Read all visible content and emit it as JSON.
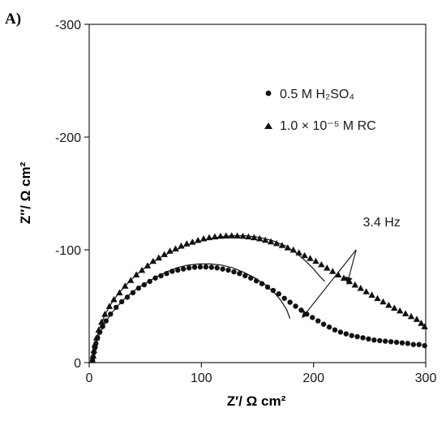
{
  "chart_data": {
    "type": "scatter",
    "panel_label": "A)",
    "xlabel": "Z′/ Ω cm²",
    "ylabel": "Z″/ Ω cm²",
    "xlim": [
      0,
      300
    ],
    "ylim": [
      0,
      -300
    ],
    "x_ticks": [
      0,
      100,
      200,
      300
    ],
    "y_ticks": [
      0,
      -100,
      -200,
      -300
    ],
    "x_tick_labels": [
      "0",
      "100",
      "200",
      "300"
    ],
    "y_tick_labels": [
      "0",
      "-100",
      "-200",
      "-300"
    ],
    "legend_position": "top-right",
    "series": [
      {
        "name": "0.5 M H₂SO₄",
        "marker": "circle",
        "color": "#111111",
        "points": [
          [
            3.0,
            -2
          ],
          [
            3.5,
            -5
          ],
          [
            4.2,
            -9
          ],
          [
            5.0,
            -13
          ],
          [
            6.0,
            -17
          ],
          [
            7.5,
            -22
          ],
          [
            9.5,
            -27
          ],
          [
            12,
            -32
          ],
          [
            15,
            -37
          ],
          [
            19,
            -43
          ],
          [
            24,
            -49
          ],
          [
            29,
            -54
          ],
          [
            34,
            -58
          ],
          [
            39,
            -62
          ],
          [
            44,
            -66
          ],
          [
            49,
            -69
          ],
          [
            54,
            -72
          ],
          [
            59,
            -75
          ],
          [
            64,
            -77
          ],
          [
            69,
            -79
          ],
          [
            74,
            -81
          ],
          [
            79,
            -82
          ],
          [
            84,
            -83
          ],
          [
            89,
            -84
          ],
          [
            94,
            -84.5
          ],
          [
            99,
            -84.8
          ],
          [
            104,
            -84.8
          ],
          [
            109,
            -84.5
          ],
          [
            114,
            -84
          ],
          [
            119,
            -83
          ],
          [
            124,
            -82
          ],
          [
            129,
            -80.5
          ],
          [
            134,
            -79
          ],
          [
            139,
            -77
          ],
          [
            144,
            -75
          ],
          [
            149,
            -72.5
          ],
          [
            154,
            -70
          ],
          [
            159,
            -67
          ],
          [
            164,
            -64
          ],
          [
            169,
            -61
          ],
          [
            174,
            -57
          ],
          [
            179,
            -53.5
          ],
          [
            184,
            -50
          ],
          [
            189,
            -46.5
          ],
          [
            194,
            -43
          ],
          [
            199,
            -40
          ],
          [
            204,
            -37
          ],
          [
            209,
            -34
          ],
          [
            214,
            -31.5
          ],
          [
            219,
            -29
          ],
          [
            224,
            -27
          ],
          [
            229,
            -25.5
          ],
          [
            234,
            -24
          ],
          [
            239,
            -23
          ],
          [
            244,
            -22
          ],
          [
            249,
            -21
          ],
          [
            254,
            -20
          ],
          [
            259,
            -19.5
          ],
          [
            264,
            -19
          ],
          [
            269,
            -18.5
          ],
          [
            274,
            -18
          ],
          [
            279,
            -17.5
          ],
          [
            284,
            -17
          ],
          [
            289,
            -16
          ],
          [
            294,
            -16
          ],
          [
            299,
            -15
          ]
        ]
      },
      {
        "name": "1.0 × 10⁻⁵ M RC",
        "marker": "triangle",
        "color": "#111111",
        "points": [
          [
            3.0,
            -2
          ],
          [
            3.5,
            -6
          ],
          [
            4.2,
            -11
          ],
          [
            5.0,
            -16
          ],
          [
            6.5,
            -22
          ],
          [
            8.5,
            -29
          ],
          [
            11,
            -36
          ],
          [
            14,
            -43
          ],
          [
            18,
            -50
          ],
          [
            22,
            -56
          ],
          [
            27,
            -62
          ],
          [
            32,
            -68
          ],
          [
            37,
            -73
          ],
          [
            42,
            -78
          ],
          [
            47,
            -82
          ],
          [
            52,
            -86
          ],
          [
            57,
            -90
          ],
          [
            62,
            -93
          ],
          [
            67,
            -96
          ],
          [
            72,
            -99
          ],
          [
            77,
            -101
          ],
          [
            82,
            -103.5
          ],
          [
            87,
            -105.5
          ],
          [
            92,
            -107
          ],
          [
            97,
            -108.5
          ],
          [
            102,
            -110
          ],
          [
            107,
            -111
          ],
          [
            112,
            -111.7
          ],
          [
            117,
            -112.2
          ],
          [
            122,
            -112.5
          ],
          [
            127,
            -112.6
          ],
          [
            132,
            -112.5
          ],
          [
            137,
            -112.2
          ],
          [
            142,
            -111.7
          ],
          [
            147,
            -111
          ],
          [
            152,
            -110
          ],
          [
            157,
            -108.7
          ],
          [
            162,
            -107.3
          ],
          [
            167,
            -105.7
          ],
          [
            172,
            -104
          ],
          [
            177,
            -102
          ],
          [
            182,
            -100
          ],
          [
            187,
            -97.5
          ],
          [
            192,
            -95
          ],
          [
            197,
            -92.5
          ],
          [
            202,
            -90
          ],
          [
            207,
            -87
          ],
          [
            212,
            -84
          ],
          [
            217,
            -81
          ],
          [
            222,
            -78
          ],
          [
            227,
            -75
          ],
          [
            232,
            -72
          ],
          [
            237,
            -69
          ],
          [
            242,
            -66
          ],
          [
            247,
            -63
          ],
          [
            252,
            -60
          ],
          [
            257,
            -57
          ],
          [
            262,
            -54
          ],
          [
            267,
            -51
          ],
          [
            272,
            -48.5
          ],
          [
            277,
            -46
          ],
          [
            282,
            -43.5
          ],
          [
            287,
            -41
          ],
          [
            292,
            -38.5
          ],
          [
            296,
            -35
          ],
          [
            299,
            -32
          ]
        ]
      }
    ],
    "fit_lines": [
      {
        "points": [
          [
            3,
            0
          ],
          [
            4,
            -8
          ],
          [
            6,
            -16
          ],
          [
            9,
            -25
          ],
          [
            13,
            -33
          ],
          [
            18,
            -41
          ],
          [
            24,
            -49
          ],
          [
            31,
            -56
          ],
          [
            39,
            -63
          ],
          [
            48,
            -69
          ],
          [
            58,
            -75
          ],
          [
            68,
            -80
          ],
          [
            78,
            -84
          ],
          [
            88,
            -86.5
          ],
          [
            98,
            -87.5
          ],
          [
            108,
            -87.5
          ],
          [
            118,
            -86.5
          ],
          [
            128,
            -84
          ],
          [
            138,
            -80
          ],
          [
            148,
            -75
          ],
          [
            157,
            -69
          ],
          [
            165,
            -62
          ],
          [
            171,
            -55
          ],
          [
            176,
            -47
          ],
          [
            179,
            -39
          ]
        ]
      },
      {
        "points": [
          [
            3,
            0
          ],
          [
            4,
            -9
          ],
          [
            6,
            -19
          ],
          [
            9,
            -30
          ],
          [
            13,
            -40
          ],
          [
            18,
            -50
          ],
          [
            25,
            -60
          ],
          [
            33,
            -69
          ],
          [
            42,
            -78
          ],
          [
            52,
            -86
          ],
          [
            63,
            -93
          ],
          [
            75,
            -99
          ],
          [
            87,
            -104
          ],
          [
            100,
            -108
          ],
          [
            113,
            -111
          ],
          [
            126,
            -112.5
          ],
          [
            139,
            -112.5
          ],
          [
            152,
            -111
          ],
          [
            164,
            -108
          ],
          [
            175,
            -103.5
          ],
          [
            185,
            -97
          ],
          [
            193,
            -90
          ],
          [
            200,
            -83
          ],
          [
            206,
            -76
          ],
          [
            210,
            -72
          ]
        ]
      }
    ],
    "annotation": {
      "text": "3.4 Hz",
      "label_xy": [
        244,
        -121
      ],
      "arrows_from": [
        238,
        -100
      ],
      "arrows_to": [
        [
          190,
          -40
        ],
        [
          230,
          -70
        ]
      ]
    }
  }
}
